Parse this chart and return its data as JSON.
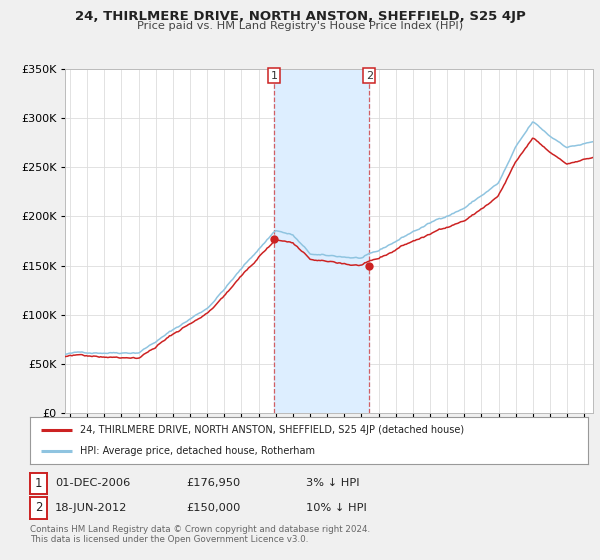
{
  "title": "24, THIRLMERE DRIVE, NORTH ANSTON, SHEFFIELD, S25 4JP",
  "subtitle": "Price paid vs. HM Land Registry's House Price Index (HPI)",
  "legend_line1": "24, THIRLMERE DRIVE, NORTH ANSTON, SHEFFIELD, S25 4JP (detached house)",
  "legend_line2": "HPI: Average price, detached house, Rotherham",
  "sale1_date": "01-DEC-2006",
  "sale1_price": "£176,950",
  "sale1_hpi": "3% ↓ HPI",
  "sale2_date": "18-JUN-2012",
  "sale2_price": "£150,000",
  "sale2_hpi": "10% ↓ HPI",
  "footnote1": "Contains HM Land Registry data © Crown copyright and database right 2024.",
  "footnote2": "This data is licensed under the Open Government Licence v3.0.",
  "hpi_color": "#8fc4e0",
  "price_color": "#cc2222",
  "shading_color": "#ddeeff",
  "background_color": "#f0f0f0",
  "plot_background": "#ffffff",
  "grid_color": "#dddddd",
  "ylim": [
    0,
    350000
  ],
  "yticks": [
    0,
    50000,
    100000,
    150000,
    200000,
    250000,
    300000,
    350000
  ],
  "xlim_start": 1994.7,
  "xlim_end": 2025.5,
  "sale1_x": 2006.92,
  "sale1_y": 176950,
  "sale2_x": 2012.46,
  "sale2_y": 150000
}
